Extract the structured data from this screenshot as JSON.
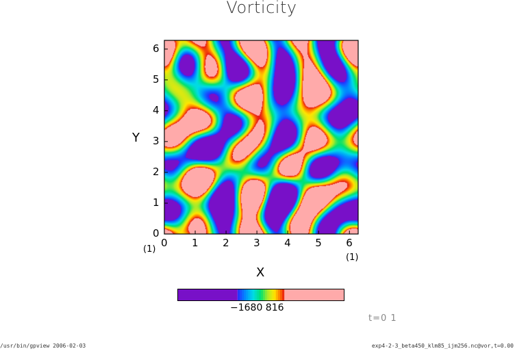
{
  "chart_data": {
    "type": "heatmap",
    "title": "Vorticity",
    "xlabel": "X",
    "ylabel": "Y",
    "xlim": [
      0,
      6.283
    ],
    "ylim": [
      0,
      6.283
    ],
    "x_ticks": [
      "0",
      "1",
      "2",
      "3",
      "4",
      "5",
      "6"
    ],
    "y_ticks": [
      "0",
      "1",
      "2",
      "3",
      "4",
      "5",
      "6"
    ],
    "x_unit_label": "(1)",
    "y_unit_label": "(1)",
    "colorbar": {
      "tick_text": "-16 -8 0 8 16",
      "display_label": "−1680 816",
      "ticks": [
        -16,
        -8,
        0,
        8,
        16
      ],
      "colors": {
        "low": "#7a10c8",
        "mid": "#00e070",
        "high": "#ffaaaa"
      }
    },
    "time_label": "t=0 1"
  },
  "footer": {
    "left": "/usr/bin/gpview  2006-02-03",
    "right": "exp4-2-3_beta450_klm85_ijm256.nc@vor,t=0.00"
  }
}
